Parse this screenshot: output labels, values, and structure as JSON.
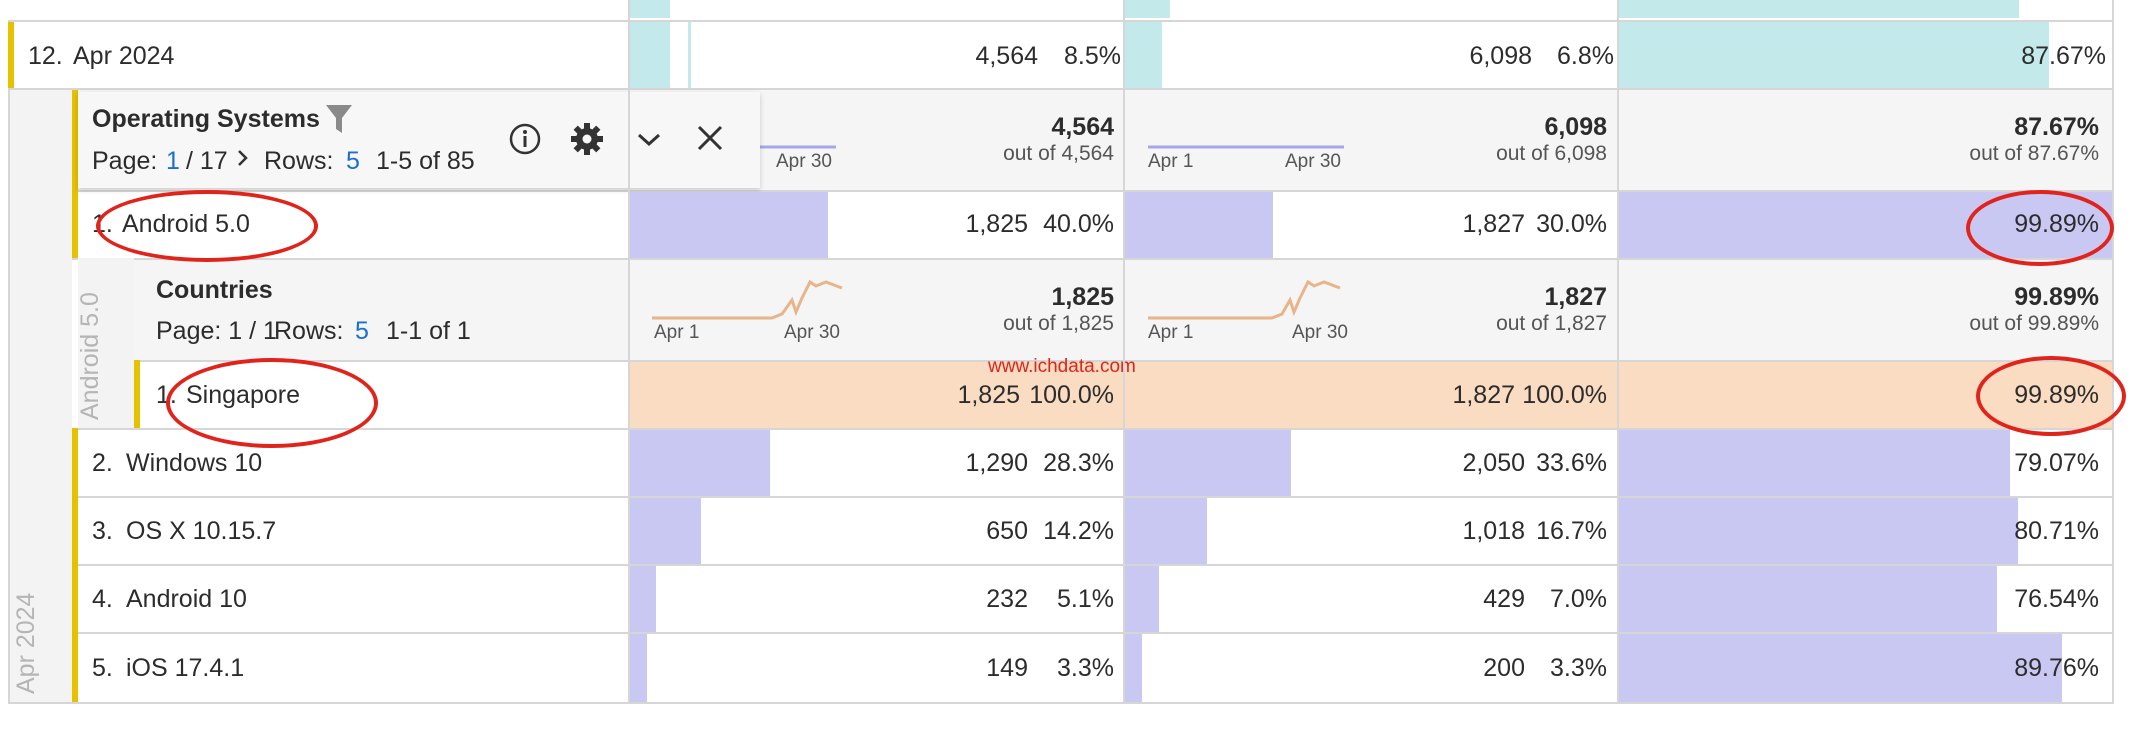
{
  "row12": {
    "num": "12.",
    "label": "Apr 2024",
    "m1_val": "4,564",
    "m1_pct": "8.5%",
    "m2_val": "6,098",
    "m2_pct": "6.8%",
    "m3_pct": "87.67%",
    "m1_bar_fraction": 0.085,
    "m2_bar_fraction": 0.068,
    "m3_bar_fraction": 0.8767
  },
  "os_panel": {
    "title": "Operating Systems",
    "page_label": "Page:",
    "page_current": "1",
    "page_total": "/ 17",
    "rows_label": "Rows:",
    "rows_value": "5",
    "range": "1-5 of 85",
    "icons": [
      "filter-icon",
      "info-icon",
      "gear-icon",
      "chevron-down-icon",
      "close-icon"
    ],
    "m1_total": "4,564",
    "m1_out_of": "out of 4,564",
    "m2_total": "6,098",
    "m2_out_of": "out of 6,098",
    "m3_total": "87.67%",
    "m3_out_of": "out of 87.67%",
    "spark_m1_end": "Apr 30",
    "spark_m2_start": "Apr 1",
    "spark_m2_end": "Apr 30"
  },
  "side_label_outer": "Apr 2024",
  "side_label_inner": "Android 5.0",
  "os_rows": [
    {
      "num": "1.",
      "label": "Android 5.0",
      "m1_val": "1,825",
      "m1_pct": "40.0%",
      "m2_val": "1,827",
      "m2_pct": "30.0%",
      "m3_pct": "99.89%",
      "m1_frac": 0.4,
      "m2_frac": 0.3,
      "m3_frac": 0.9989
    },
    {
      "num": "2.",
      "label": "Windows 10",
      "m1_val": "1,290",
      "m1_pct": "28.3%",
      "m2_val": "2,050",
      "m2_pct": "33.6%",
      "m3_pct": "79.07%",
      "m1_frac": 0.283,
      "m2_frac": 0.336,
      "m3_frac": 0.7907
    },
    {
      "num": "3.",
      "label": "OS X 10.15.7",
      "m1_val": "650",
      "m1_pct": "14.2%",
      "m2_val": "1,018",
      "m2_pct": "16.7%",
      "m3_pct": "80.71%",
      "m1_frac": 0.142,
      "m2_frac": 0.167,
      "m3_frac": 0.8071
    },
    {
      "num": "4.",
      "label": "Android 10",
      "m1_val": "232",
      "m1_pct": "5.1%",
      "m2_val": "429",
      "m2_pct": "7.0%",
      "m3_pct": "76.54%",
      "m1_frac": 0.051,
      "m2_frac": 0.07,
      "m3_frac": 0.7654
    },
    {
      "num": "5.",
      "label": "iOS 17.4.1",
      "m1_val": "149",
      "m1_pct": "3.3%",
      "m2_val": "200",
      "m2_pct": "3.3%",
      "m3_pct": "89.76%",
      "m1_frac": 0.033,
      "m2_frac": 0.033,
      "m3_frac": 0.8976
    }
  ],
  "countries_panel": {
    "title": "Countries",
    "page_text": "Page: 1 / 1",
    "rows_label": "Rows:",
    "rows_value": "5",
    "range": "1-1 of 1",
    "m1_total": "1,825",
    "m1_out_of": "out of 1,825",
    "m2_total": "1,827",
    "m2_out_of": "out of 1,827",
    "m3_total": "99.89%",
    "m3_out_of": "out of 99.89%",
    "spark_m1_start": "Apr 1",
    "spark_m1_end": "Apr 30",
    "spark_m2_start": "Apr 1",
    "spark_m2_end": "Apr 30"
  },
  "country_row": {
    "num": "1.",
    "label": "Singapore",
    "m1_val": "1,825",
    "m1_pct": "100.0%",
    "m2_val": "1,827",
    "m2_pct": "100.0%",
    "m3_pct": "99.89%"
  },
  "watermark": "www.ichdata.com",
  "colors": {
    "teal_bar": "#c3e9eb",
    "purple_bar": "#c9c8f2",
    "orange_row": "#f9dcc2",
    "orange_line": "#e8b489",
    "purple_line": "#a7a6e6",
    "yellow_accent": "#e5c100",
    "annotation_red": "#e0241b"
  }
}
